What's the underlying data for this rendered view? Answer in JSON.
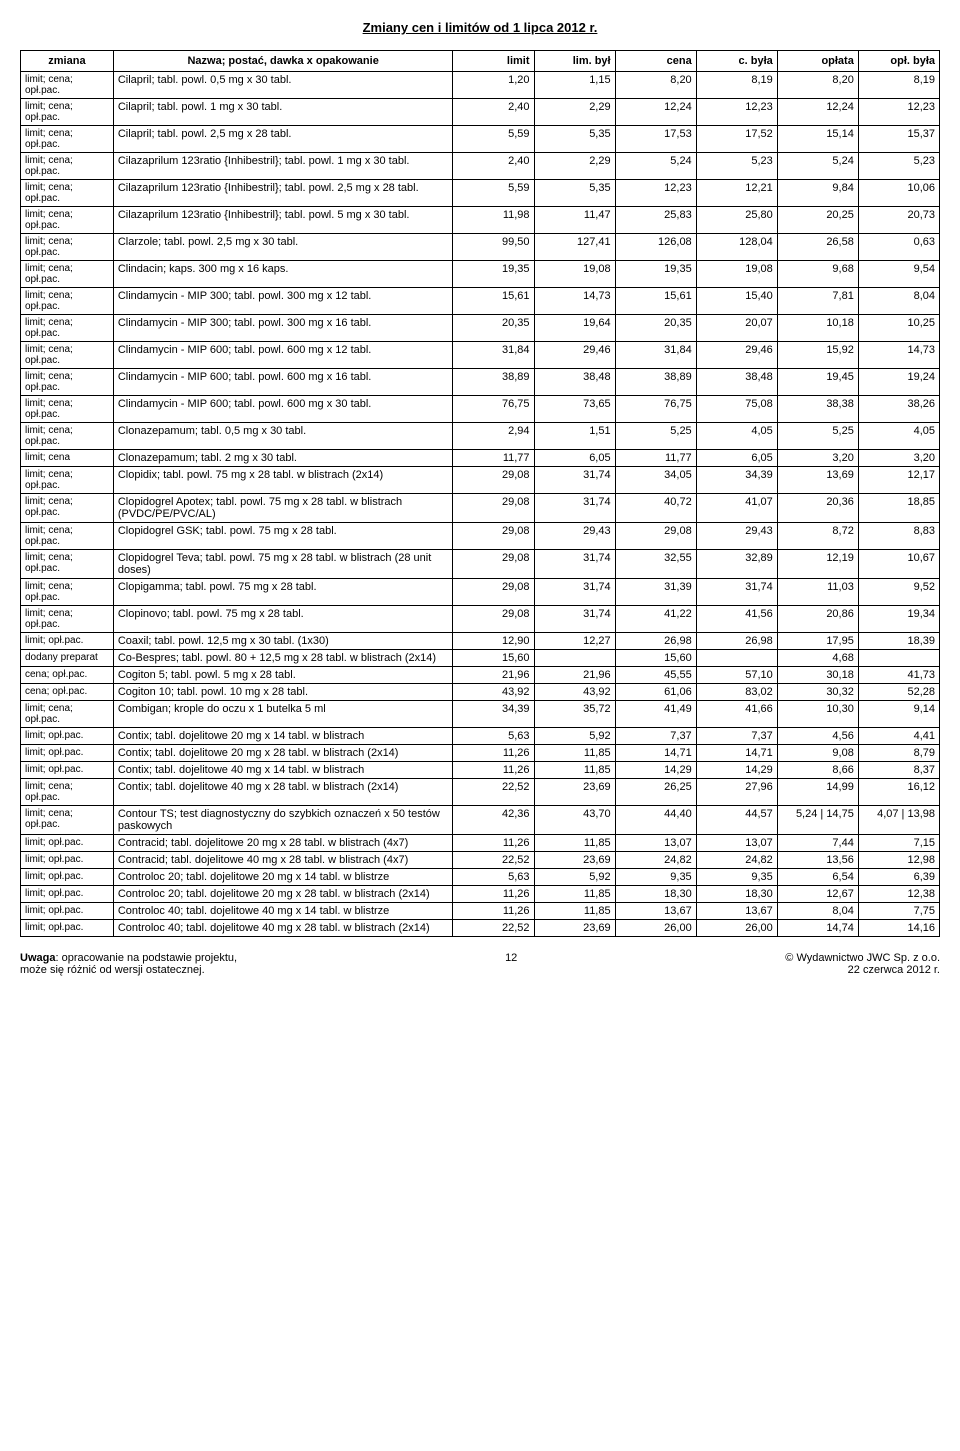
{
  "title": "Zmiany cen i limitów od 1 lipca 2012 r.",
  "headers": {
    "zmiana": "zmiana",
    "nazwa": "Nazwa; postać, dawka  x opakowanie",
    "limit": "limit",
    "lim_byl": "lim. był",
    "cena": "cena",
    "c_byla": "c. była",
    "oplata": "opłata",
    "opl_byla": "opł. była"
  },
  "rows": [
    {
      "zmiana": "limit; cena; opł.pac.",
      "nazwa": "Cilapril; tabl. powl. 0,5 mg  x 30 tabl.",
      "limit": "1,20",
      "lim_byl": "1,15",
      "cena": "8,20",
      "c_byla": "8,19",
      "oplata": "8,20",
      "opl_byla": "8,19"
    },
    {
      "zmiana": "limit; cena; opł.pac.",
      "nazwa": "Cilapril; tabl. powl. 1 mg  x 30 tabl.",
      "limit": "2,40",
      "lim_byl": "2,29",
      "cena": "12,24",
      "c_byla": "12,23",
      "oplata": "12,24",
      "opl_byla": "12,23"
    },
    {
      "zmiana": "limit; cena; opł.pac.",
      "nazwa": "Cilapril; tabl. powl. 2,5 mg  x 28 tabl.",
      "limit": "5,59",
      "lim_byl": "5,35",
      "cena": "17,53",
      "c_byla": "17,52",
      "oplata": "15,14",
      "opl_byla": "15,37"
    },
    {
      "zmiana": "limit; cena; opł.pac.",
      "nazwa": "Cilazaprilum 123ratio {Inhibestril}; tabl. powl. 1 mg  x 30 tabl.",
      "limit": "2,40",
      "lim_byl": "2,29",
      "cena": "5,24",
      "c_byla": "5,23",
      "oplata": "5,24",
      "opl_byla": "5,23"
    },
    {
      "zmiana": "limit; cena; opł.pac.",
      "nazwa": "Cilazaprilum 123ratio {Inhibestril}; tabl. powl. 2,5 mg  x 28 tabl.",
      "limit": "5,59",
      "lim_byl": "5,35",
      "cena": "12,23",
      "c_byla": "12,21",
      "oplata": "9,84",
      "opl_byla": "10,06"
    },
    {
      "zmiana": "limit; cena; opł.pac.",
      "nazwa": "Cilazaprilum 123ratio {Inhibestril}; tabl. powl. 5 mg  x 30 tabl.",
      "limit": "11,98",
      "lim_byl": "11,47",
      "cena": "25,83",
      "c_byla": "25,80",
      "oplata": "20,25",
      "opl_byla": "20,73"
    },
    {
      "zmiana": "limit; cena; opł.pac.",
      "nazwa": "Clarzole; tabl. powl. 2,5 mg  x 30 tabl.",
      "limit": "99,50",
      "lim_byl": "127,41",
      "cena": "126,08",
      "c_byla": "128,04",
      "oplata": "26,58",
      "opl_byla": "0,63"
    },
    {
      "zmiana": "limit; cena; opł.pac.",
      "nazwa": "Clindacin; kaps. 300 mg  x 16 kaps.",
      "limit": "19,35",
      "lim_byl": "19,08",
      "cena": "19,35",
      "c_byla": "19,08",
      "oplata": "9,68",
      "opl_byla": "9,54"
    },
    {
      "zmiana": "limit; cena; opł.pac.",
      "nazwa": "Clindamycin - MIP 300; tabl. powl. 300 mg  x 12 tabl.",
      "limit": "15,61",
      "lim_byl": "14,73",
      "cena": "15,61",
      "c_byla": "15,40",
      "oplata": "7,81",
      "opl_byla": "8,04"
    },
    {
      "zmiana": "limit; cena; opł.pac.",
      "nazwa": "Clindamycin - MIP 300; tabl. powl. 300 mg  x 16 tabl.",
      "limit": "20,35",
      "lim_byl": "19,64",
      "cena": "20,35",
      "c_byla": "20,07",
      "oplata": "10,18",
      "opl_byla": "10,25"
    },
    {
      "zmiana": "limit; cena; opł.pac.",
      "nazwa": "Clindamycin - MIP 600; tabl. powl. 600 mg  x 12 tabl.",
      "limit": "31,84",
      "lim_byl": "29,46",
      "cena": "31,84",
      "c_byla": "29,46",
      "oplata": "15,92",
      "opl_byla": "14,73"
    },
    {
      "zmiana": "limit; cena; opł.pac.",
      "nazwa": "Clindamycin - MIP 600; tabl. powl. 600 mg  x 16 tabl.",
      "limit": "38,89",
      "lim_byl": "38,48",
      "cena": "38,89",
      "c_byla": "38,48",
      "oplata": "19,45",
      "opl_byla": "19,24"
    },
    {
      "zmiana": "limit; cena; opł.pac.",
      "nazwa": "Clindamycin - MIP 600; tabl. powl. 600 mg  x 30 tabl.",
      "limit": "76,75",
      "lim_byl": "73,65",
      "cena": "76,75",
      "c_byla": "75,08",
      "oplata": "38,38",
      "opl_byla": "38,26"
    },
    {
      "zmiana": "limit; cena; opł.pac.",
      "nazwa": "Clonazepamum; tabl. 0,5 mg  x 30 tabl.",
      "limit": "2,94",
      "lim_byl": "1,51",
      "cena": "5,25",
      "c_byla": "4,05",
      "oplata": "5,25",
      "opl_byla": "4,05"
    },
    {
      "zmiana": "limit; cena",
      "nazwa": "Clonazepamum; tabl. 2 mg  x 30 tabl.",
      "limit": "11,77",
      "lim_byl": "6,05",
      "cena": "11,77",
      "c_byla": "6,05",
      "oplata": "3,20",
      "opl_byla": "3,20"
    },
    {
      "zmiana": "limit; cena; opł.pac.",
      "nazwa": "Clopidix; tabl. powl. 75 mg  x 28 tabl. w blistrach (2x14)",
      "limit": "29,08",
      "lim_byl": "31,74",
      "cena": "34,05",
      "c_byla": "34,39",
      "oplata": "13,69",
      "opl_byla": "12,17"
    },
    {
      "zmiana": "limit; cena; opł.pac.",
      "nazwa": "Clopidogrel Apotex; tabl. powl. 75 mg  x 28 tabl. w blistrach (PVDC/PE/PVC/AL)",
      "limit": "29,08",
      "lim_byl": "31,74",
      "cena": "40,72",
      "c_byla": "41,07",
      "oplata": "20,36",
      "opl_byla": "18,85"
    },
    {
      "zmiana": "limit; cena; opł.pac.",
      "nazwa": "Clopidogrel GSK; tabl. powl. 75 mg  x 28 tabl.",
      "limit": "29,08",
      "lim_byl": "29,43",
      "cena": "29,08",
      "c_byla": "29,43",
      "oplata": "8,72",
      "opl_byla": "8,83"
    },
    {
      "zmiana": "limit; cena; opł.pac.",
      "nazwa": "Clopidogrel Teva; tabl. powl. 75 mg  x 28 tabl. w blistrach (28 unit doses)",
      "limit": "29,08",
      "lim_byl": "31,74",
      "cena": "32,55",
      "c_byla": "32,89",
      "oplata": "12,19",
      "opl_byla": "10,67"
    },
    {
      "zmiana": "limit; cena; opł.pac.",
      "nazwa": "Clopigamma; tabl. powl. 75 mg  x 28 tabl.",
      "limit": "29,08",
      "lim_byl": "31,74",
      "cena": "31,39",
      "c_byla": "31,74",
      "oplata": "11,03",
      "opl_byla": "9,52"
    },
    {
      "zmiana": "limit; cena; opł.pac.",
      "nazwa": "Clopinovo; tabl. powl. 75 mg  x 28 tabl.",
      "limit": "29,08",
      "lim_byl": "31,74",
      "cena": "41,22",
      "c_byla": "41,56",
      "oplata": "20,86",
      "opl_byla": "19,34"
    },
    {
      "zmiana": "limit; opł.pac.",
      "nazwa": "Coaxil; tabl. powl. 12,5 mg  x 30 tabl. (1x30)",
      "limit": "12,90",
      "lim_byl": "12,27",
      "cena": "26,98",
      "c_byla": "26,98",
      "oplata": "17,95",
      "opl_byla": "18,39"
    },
    {
      "zmiana": "dodany preparat",
      "nazwa": "Co-Bespres; tabl. powl. 80 + 12,5 mg  x 28 tabl. w blistrach (2x14)",
      "limit": "15,60",
      "lim_byl": "",
      "cena": "15,60",
      "c_byla": "",
      "oplata": "4,68",
      "opl_byla": ""
    },
    {
      "zmiana": "cena; opł.pac.",
      "nazwa": "Cogiton  5; tabl. powl. 5 mg  x 28 tabl.",
      "limit": "21,96",
      "lim_byl": "21,96",
      "cena": "45,55",
      "c_byla": "57,10",
      "oplata": "30,18",
      "opl_byla": "41,73"
    },
    {
      "zmiana": "cena; opł.pac.",
      "nazwa": "Cogiton 10; tabl. powl. 10 mg  x 28 tabl.",
      "limit": "43,92",
      "lim_byl": "43,92",
      "cena": "61,06",
      "c_byla": "83,02",
      "oplata": "30,32",
      "opl_byla": "52,28"
    },
    {
      "zmiana": "limit; cena; opł.pac.",
      "nazwa": "Combigan; krople do oczu  x 1 butelka 5 ml",
      "limit": "34,39",
      "lim_byl": "35,72",
      "cena": "41,49",
      "c_byla": "41,66",
      "oplata": "10,30",
      "opl_byla": "9,14"
    },
    {
      "zmiana": "limit; opł.pac.",
      "nazwa": "Contix; tabl. dojelitowe 20 mg  x 14 tabl. w blistrach",
      "limit": "5,63",
      "lim_byl": "5,92",
      "cena": "7,37",
      "c_byla": "7,37",
      "oplata": "4,56",
      "opl_byla": "4,41"
    },
    {
      "zmiana": "limit; opł.pac.",
      "nazwa": "Contix; tabl. dojelitowe 20 mg  x 28 tabl. w blistrach (2x14)",
      "limit": "11,26",
      "lim_byl": "11,85",
      "cena": "14,71",
      "c_byla": "14,71",
      "oplata": "9,08",
      "opl_byla": "8,79"
    },
    {
      "zmiana": "limit; opł.pac.",
      "nazwa": "Contix; tabl. dojelitowe 40 mg  x 14 tabl. w blistrach",
      "limit": "11,26",
      "lim_byl": "11,85",
      "cena": "14,29",
      "c_byla": "14,29",
      "oplata": "8,66",
      "opl_byla": "8,37"
    },
    {
      "zmiana": "limit; cena; opł.pac.",
      "nazwa": "Contix; tabl. dojelitowe 40 mg  x 28 tabl. w blistrach (2x14)",
      "limit": "22,52",
      "lim_byl": "23,69",
      "cena": "26,25",
      "c_byla": "27,96",
      "oplata": "14,99",
      "opl_byla": "16,12"
    },
    {
      "zmiana": "limit; cena; opł.pac.",
      "nazwa": "Contour TS; test diagnostyczny do szybkich oznaczeń  x 50 testów paskowych",
      "limit": "42,36",
      "lim_byl": "43,70",
      "cena": "44,40",
      "c_byla": "44,57",
      "oplata": "5,24 | 14,75",
      "opl_byla": "4,07 | 13,98"
    },
    {
      "zmiana": "limit; opł.pac.",
      "nazwa": "Contracid; tabl. dojelitowe 20 mg  x 28 tabl. w blistrach (4x7)",
      "limit": "11,26",
      "lim_byl": "11,85",
      "cena": "13,07",
      "c_byla": "13,07",
      "oplata": "7,44",
      "opl_byla": "7,15"
    },
    {
      "zmiana": "limit; opł.pac.",
      "nazwa": "Contracid; tabl. dojelitowe 40 mg  x 28 tabl. w blistrach (4x7)",
      "limit": "22,52",
      "lim_byl": "23,69",
      "cena": "24,82",
      "c_byla": "24,82",
      "oplata": "13,56",
      "opl_byla": "12,98"
    },
    {
      "zmiana": "limit; opł.pac.",
      "nazwa": "Controloc 20; tabl. dojelitowe 20 mg  x 14 tabl. w blistrze",
      "limit": "5,63",
      "lim_byl": "5,92",
      "cena": "9,35",
      "c_byla": "9,35",
      "oplata": "6,54",
      "opl_byla": "6,39"
    },
    {
      "zmiana": "limit; opł.pac.",
      "nazwa": "Controloc 20; tabl. dojelitowe 20 mg  x 28 tabl. w blistrach (2x14)",
      "limit": "11,26",
      "lim_byl": "11,85",
      "cena": "18,30",
      "c_byla": "18,30",
      "oplata": "12,67",
      "opl_byla": "12,38"
    },
    {
      "zmiana": "limit; opł.pac.",
      "nazwa": "Controloc 40; tabl. dojelitowe 40 mg  x 14 tabl. w blistrze",
      "limit": "11,26",
      "lim_byl": "11,85",
      "cena": "13,67",
      "c_byla": "13,67",
      "oplata": "8,04",
      "opl_byla": "7,75"
    },
    {
      "zmiana": "limit; opł.pac.",
      "nazwa": "Controloc 40; tabl. dojelitowe 40 mg  x 28 tabl. w blistrach (2x14)",
      "limit": "22,52",
      "lim_byl": "23,69",
      "cena": "26,00",
      "c_byla": "26,00",
      "oplata": "14,74",
      "opl_byla": "14,16"
    }
  ],
  "footer": {
    "left_line1": "Uwaga: opracowanie na podstawie projektu,",
    "left_line2": "może się różnić od wersji ostatecznej.",
    "page_num": "12",
    "right_line1": "© Wydawnictwo JWC Sp. z o.o.",
    "right_line2": "22 czerwca 2012 r."
  }
}
